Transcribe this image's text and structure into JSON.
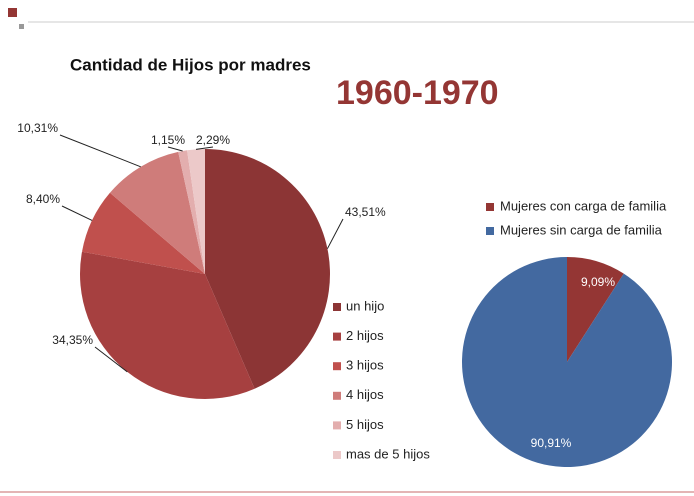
{
  "slide_title": "1960-1970",
  "chart_data": [
    {
      "type": "pie",
      "title": "Cantidad de Hijos por madres",
      "categories": [
        "un hijo",
        "2 hijos",
        "3 hijos",
        "4 hijos",
        "5 hijos",
        "mas de 5 hijos"
      ],
      "values": [
        43.51,
        34.35,
        8.4,
        10.31,
        1.15,
        2.29
      ],
      "value_labels": [
        "43,51%",
        "34,35%",
        "8,40%",
        "10,31%",
        "1,15%",
        "2,29%"
      ],
      "colors": [
        "#8c3535",
        "#a64040",
        "#c0504d",
        "#cf7c7a",
        "#e3aeae",
        "#ecc9c9"
      ],
      "legend": "right"
    },
    {
      "type": "pie",
      "categories": [
        "Mujeres con carga de familia",
        "Mujeres sin carga de familia"
      ],
      "values": [
        9.09,
        90.91
      ],
      "value_labels": [
        "9,09%",
        "90,91%"
      ],
      "colors": [
        "#943634",
        "#4369a0"
      ],
      "legend": "top"
    }
  ]
}
